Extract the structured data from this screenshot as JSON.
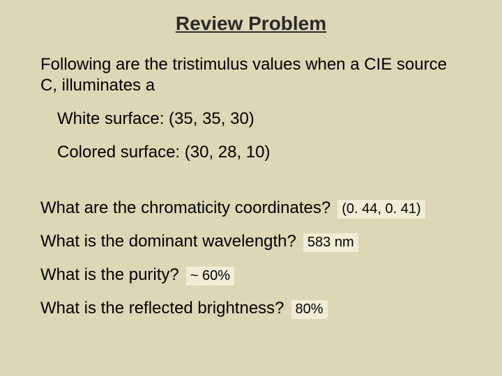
{
  "background_color": "#ded7b6",
  "answer_bg": "#f0ecd5",
  "text_color": "#000000",
  "title_color": "#2a2a2a",
  "font_family": "Arial",
  "title": {
    "text": "Review Problem",
    "fontsize": 28,
    "bold": true,
    "underline": true,
    "align": "center"
  },
  "body_fontsize": 24,
  "answer_fontsize": 20,
  "intro": "Following are the tristimulus values when a CIE source C, illuminates a",
  "surfaces": [
    {
      "label": "White surface: (35, 35, 30)"
    },
    {
      "label": "Colored surface: (30, 28, 10)"
    }
  ],
  "questions": [
    {
      "q": "What are the chromaticity coordinates?",
      "a": "(0. 44, 0. 41)"
    },
    {
      "q": "What is the dominant wavelength?",
      "a": "583 nm"
    },
    {
      "q": "What is the purity?",
      "a": "~ 60%"
    },
    {
      "q": "What is the reflected brightness?",
      "a": "80%"
    }
  ]
}
